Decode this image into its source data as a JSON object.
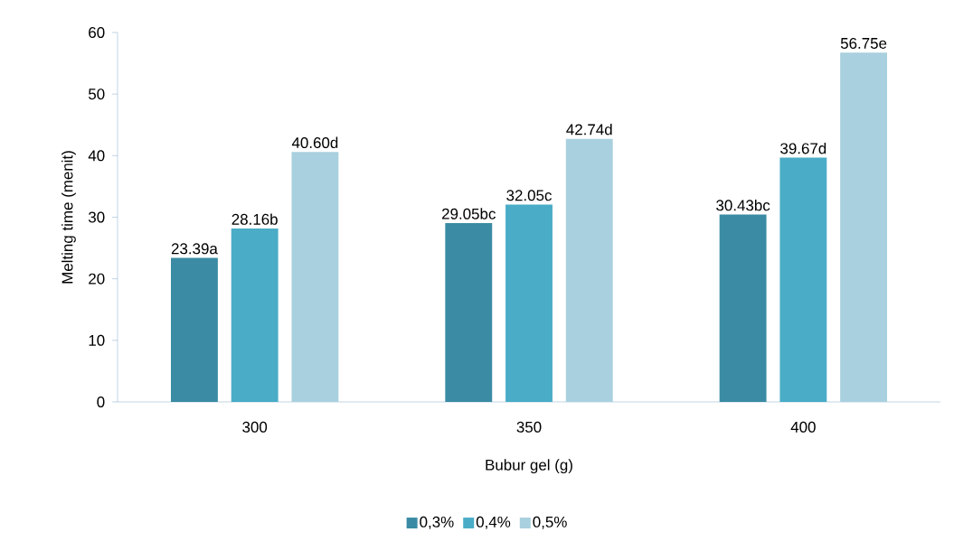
{
  "chart_data": {
    "type": "bar",
    "xlabel": "Bubur gel (g)",
    "ylabel": "Melting time (menit)",
    "categories": [
      "300",
      "350",
      "400"
    ],
    "series": [
      {
        "name": "0,3%",
        "color": "#3a8ba3",
        "values": [
          23.39,
          29.05,
          30.43
        ],
        "value_labels": [
          "23.39a",
          "29.05bc",
          "30.43bc"
        ]
      },
      {
        "name": "0,4%",
        "color": "#4aacc6",
        "values": [
          28.16,
          32.05,
          39.67
        ],
        "value_labels": [
          "28.16b",
          "32.05c",
          "39.67d"
        ]
      },
      {
        "name": "0,5%",
        "color": "#a9d0de",
        "values": [
          40.6,
          42.74,
          56.75
        ],
        "value_labels": [
          "40.60d",
          "42.74d",
          "56.75e"
        ]
      }
    ],
    "ylim": [
      0,
      60
    ],
    "yticks": [
      0,
      10,
      20,
      30,
      40,
      50,
      60
    ],
    "grid": false,
    "legend": "bottom"
  }
}
